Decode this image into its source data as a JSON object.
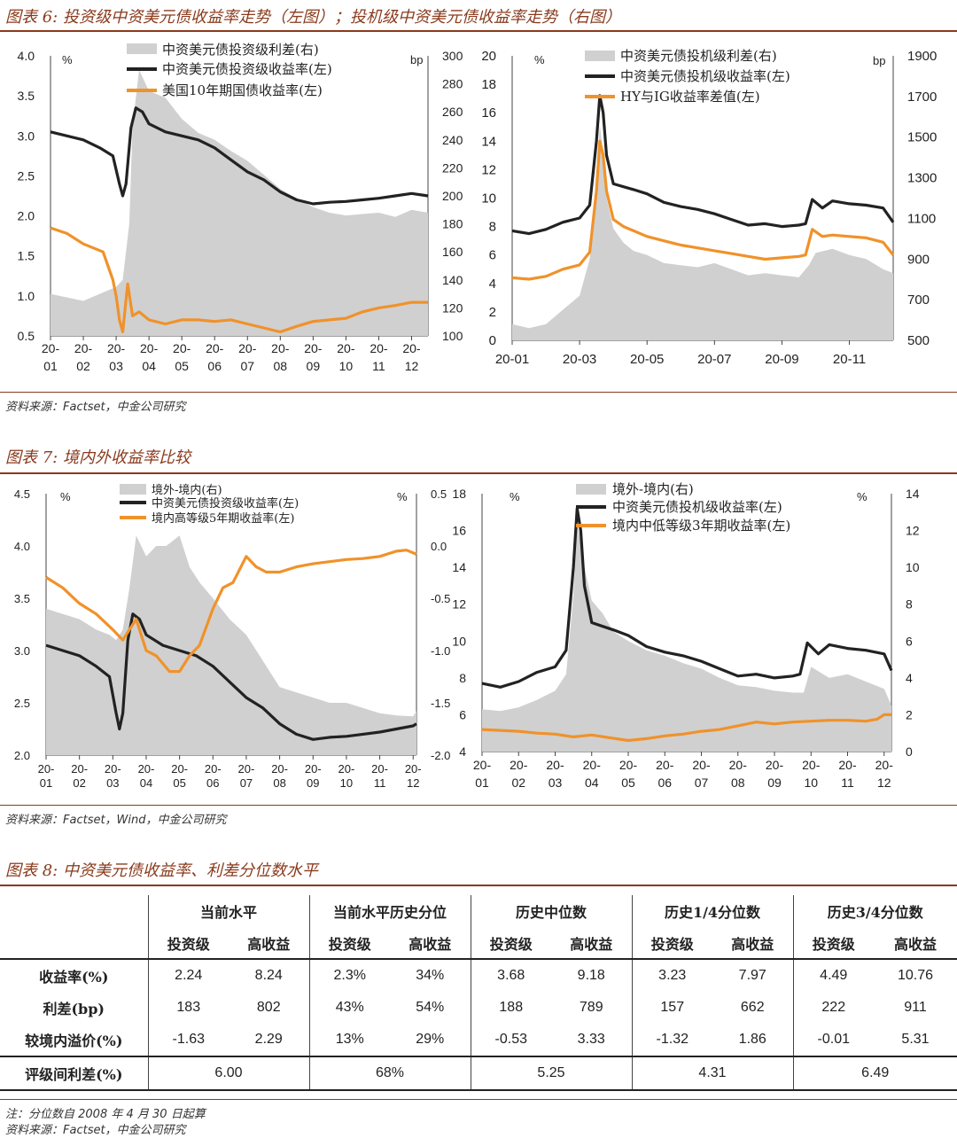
{
  "fig6": {
    "title": "图表 6: 投资级中资美元债收益率走势（左图）；投机级中资美元债收益率走势（右图）",
    "source": "资料来源：Factset，中金公司研究"
  },
  "fig7": {
    "title": "图表 7: 境内外收益率比较",
    "source": "资料来源：Factset，Wind，中金公司研究"
  },
  "fig8": {
    "title": "图表 8: 中资美元债收益率、利差分位数水平",
    "note": "注：分位数自 2008 年 4 月 30 日起算",
    "source": "资料来源：Factset，中金公司研究"
  },
  "chart_data": [
    {
      "id": "c6l",
      "type": "line",
      "left_unit": "%",
      "right_unit": "bp",
      "ylim_left": [
        0.5,
        4.0
      ],
      "ylim_right": [
        100,
        300
      ],
      "yticks_left": [
        "4.0",
        "3.5",
        "3.0",
        "2.5",
        "2.0",
        "1.5",
        "1.0",
        "0.5"
      ],
      "yticks_right": [
        "300",
        "280",
        "260",
        "240",
        "220",
        "200",
        "180",
        "160",
        "140",
        "120",
        "100"
      ],
      "xticks": [
        "20-01",
        "20-02",
        "20-03",
        "20-04",
        "20-05",
        "20-06",
        "20-07",
        "20-08",
        "20-09",
        "20-10",
        "20-11",
        "20-12"
      ],
      "x_months": [
        0,
        1,
        2,
        3,
        4,
        5,
        6,
        7,
        8,
        9,
        10,
        11
      ],
      "series": [
        {
          "name": "中资美元债投资级利差(右)",
          "kind": "area",
          "axis": "right",
          "color": "#d0d0d0",
          "x": [
            0,
            1,
            1.5,
            2,
            2.2,
            2.4,
            2.5,
            2.6,
            2.7,
            2.8,
            3,
            3.5,
            4,
            4.5,
            5,
            5.5,
            6,
            6.5,
            7,
            7.5,
            8,
            8.5,
            9,
            9.5,
            10,
            10.5,
            11,
            11.5
          ],
          "y": [
            130,
            125,
            130,
            135,
            140,
            180,
            250,
            270,
            290,
            285,
            275,
            270,
            255,
            245,
            240,
            232,
            225,
            215,
            205,
            198,
            192,
            188,
            186,
            187,
            188,
            185,
            190,
            188
          ]
        },
        {
          "name": "中资美元债投资级收益率(左)",
          "kind": "line",
          "axis": "left",
          "color": "#222222",
          "x": [
            0,
            0.5,
            1,
            1.5,
            1.9,
            2.1,
            2.2,
            2.3,
            2.45,
            2.6,
            2.8,
            3,
            3.5,
            4,
            4.5,
            5,
            5.5,
            6,
            6.5,
            7,
            7.5,
            8,
            8.5,
            9,
            9.5,
            10,
            10.5,
            11,
            11.5
          ],
          "y": [
            3.05,
            3.0,
            2.95,
            2.85,
            2.75,
            2.4,
            2.25,
            2.4,
            3.1,
            3.35,
            3.3,
            3.15,
            3.05,
            3.0,
            2.95,
            2.85,
            2.7,
            2.55,
            2.45,
            2.3,
            2.2,
            2.15,
            2.17,
            2.18,
            2.2,
            2.22,
            2.25,
            2.28,
            2.25
          ]
        },
        {
          "name": "美国10年期国债收益率(左)",
          "kind": "line",
          "axis": "left",
          "color": "#f0922a",
          "x": [
            0,
            0.5,
            1,
            1.3,
            1.6,
            1.9,
            2.0,
            2.1,
            2.2,
            2.35,
            2.5,
            2.7,
            3,
            3.5,
            4,
            4.5,
            5,
            5.5,
            6,
            6.5,
            7,
            7.5,
            8,
            8.5,
            9,
            9.5,
            10,
            10.5,
            11,
            11.5
          ],
          "y": [
            1.85,
            1.78,
            1.65,
            1.6,
            1.55,
            1.2,
            1.0,
            0.7,
            0.55,
            1.15,
            0.75,
            0.8,
            0.7,
            0.65,
            0.7,
            0.7,
            0.68,
            0.7,
            0.65,
            0.6,
            0.55,
            0.62,
            0.68,
            0.7,
            0.72,
            0.8,
            0.85,
            0.88,
            0.92,
            0.92
          ]
        }
      ]
    },
    {
      "id": "c6r",
      "type": "line",
      "left_unit": "%",
      "right_unit": "bp",
      "ylim_left": [
        0,
        20
      ],
      "ylim_right": [
        500,
        1900
      ],
      "yticks_left": [
        "20",
        "18",
        "16",
        "14",
        "12",
        "10",
        "8",
        "6",
        "4",
        "2",
        "0"
      ],
      "yticks_right": [
        "1900",
        "1700",
        "1500",
        "1300",
        "1100",
        "900",
        "700",
        "500"
      ],
      "xticks": [
        "20-01",
        "20-03",
        "20-05",
        "20-07",
        "20-09",
        "20-11"
      ],
      "x_months": [
        0,
        2,
        4,
        6,
        8,
        10
      ],
      "series": [
        {
          "name": "中资美元债投机级利差(右)",
          "kind": "area",
          "axis": "right",
          "color": "#d0d0d0",
          "x": [
            0,
            0.5,
            1,
            1.5,
            2,
            2.3,
            2.5,
            2.6,
            2.7,
            2.8,
            3,
            3.3,
            3.6,
            4,
            4.5,
            5,
            5.5,
            6,
            6.5,
            7,
            7.5,
            8,
            8.5,
            8.8,
            9,
            9.5,
            10,
            10.5,
            11,
            11.3
          ],
          "y": [
            580,
            560,
            580,
            650,
            720,
            900,
            1300,
            1560,
            1420,
            1200,
            1050,
            980,
            940,
            920,
            880,
            870,
            860,
            880,
            850,
            820,
            830,
            820,
            810,
            870,
            930,
            950,
            920,
            900,
            850,
            830
          ]
        },
        {
          "name": "中资美元债投机级收益率(左)",
          "kind": "line",
          "axis": "left",
          "color": "#222222",
          "x": [
            0,
            0.5,
            1,
            1.5,
            2,
            2.3,
            2.5,
            2.6,
            2.7,
            2.8,
            3,
            3.3,
            3.6,
            4,
            4.5,
            5,
            5.5,
            6,
            6.5,
            7,
            7.5,
            8,
            8.5,
            8.7,
            8.9,
            9.2,
            9.5,
            10,
            10.5,
            11,
            11.3
          ],
          "y": [
            7.7,
            7.5,
            7.8,
            8.3,
            8.6,
            9.5,
            14,
            17.2,
            16,
            13,
            11,
            10.8,
            10.6,
            10.3,
            9.7,
            9.4,
            9.2,
            8.9,
            8.5,
            8.1,
            8.2,
            8.0,
            8.1,
            8.2,
            9.9,
            9.3,
            9.8,
            9.6,
            9.5,
            9.3,
            8.3
          ]
        },
        {
          "name": "HY与IG收益率差值(左)",
          "kind": "line",
          "axis": "left",
          "color": "#f0922a",
          "x": [
            0,
            0.5,
            1,
            1.5,
            2,
            2.3,
            2.5,
            2.6,
            2.7,
            2.8,
            3,
            3.3,
            3.6,
            4,
            4.5,
            5,
            5.5,
            6,
            6.5,
            7,
            7.5,
            8,
            8.5,
            8.7,
            8.9,
            9.2,
            9.5,
            10,
            10.5,
            11,
            11.3
          ],
          "y": [
            4.4,
            4.3,
            4.5,
            5.0,
            5.3,
            6.2,
            10.5,
            14,
            13,
            10.5,
            8.5,
            8.0,
            7.7,
            7.3,
            7.0,
            6.7,
            6.5,
            6.3,
            6.1,
            5.9,
            5.7,
            5.8,
            5.9,
            6.0,
            7.8,
            7.3,
            7.4,
            7.3,
            7.2,
            6.9,
            6.0
          ]
        }
      ]
    },
    {
      "id": "c7l",
      "type": "line",
      "left_unit": "%",
      "right_unit": "%",
      "ylim_left": [
        2.0,
        4.5
      ],
      "ylim_right": [
        -2.0,
        0.5
      ],
      "yticks_left": [
        "4.5",
        "4.0",
        "3.5",
        "3.0",
        "2.5",
        "2.0"
      ],
      "yticks_right": [
        "0.5",
        "0.0",
        "-0.5",
        "-1.0",
        "-1.5",
        "-2.0"
      ],
      "xticks": [
        "20-01",
        "20-02",
        "20-03",
        "20-04",
        "20-05",
        "20-06",
        "20-07",
        "20-08",
        "20-09",
        "20-10",
        "20-11",
        "20-12"
      ],
      "x_months": [
        0,
        1,
        2,
        3,
        4,
        5,
        6,
        7,
        8,
        9,
        10,
        11
      ],
      "series": [
        {
          "name": "境外-境内(右)",
          "kind": "area",
          "axis": "right",
          "color": "#d0d0d0",
          "x": [
            0,
            0.5,
            1,
            1.5,
            1.9,
            2.1,
            2.3,
            2.5,
            2.7,
            3,
            3.3,
            3.6,
            4,
            4.3,
            4.6,
            5,
            5.5,
            6,
            6.5,
            7,
            7.5,
            8,
            8.5,
            9,
            9.5,
            10,
            10.5,
            11,
            11.1
          ],
          "y": [
            -0.6,
            -0.65,
            -0.7,
            -0.8,
            -0.85,
            -0.9,
            -0.8,
            -0.4,
            0.1,
            -0.1,
            0.0,
            0.0,
            0.1,
            -0.2,
            -0.35,
            -0.5,
            -0.7,
            -0.85,
            -1.1,
            -1.35,
            -1.4,
            -1.45,
            -1.5,
            -1.5,
            -1.55,
            -1.6,
            -1.62,
            -1.63,
            -1.58
          ]
        },
        {
          "name": "中资美元债投资级收益率(左)",
          "kind": "line",
          "axis": "left",
          "color": "#222222",
          "x": [
            0,
            0.5,
            1,
            1.5,
            1.9,
            2.1,
            2.2,
            2.3,
            2.45,
            2.6,
            2.8,
            3,
            3.5,
            4,
            4.5,
            5,
            5.5,
            6,
            6.5,
            7,
            7.5,
            8,
            8.5,
            9,
            9.5,
            10,
            10.5,
            11,
            11.1
          ],
          "y": [
            3.05,
            3.0,
            2.95,
            2.85,
            2.75,
            2.4,
            2.25,
            2.4,
            3.1,
            3.35,
            3.3,
            3.15,
            3.05,
            3.0,
            2.95,
            2.85,
            2.7,
            2.55,
            2.45,
            2.3,
            2.2,
            2.15,
            2.17,
            2.18,
            2.2,
            2.22,
            2.25,
            2.28,
            2.3
          ]
        },
        {
          "name": "境内高等级5年期收益率(左)",
          "kind": "line",
          "axis": "left",
          "color": "#f0922a",
          "x": [
            0,
            0.5,
            1,
            1.5,
            2,
            2.3,
            2.5,
            2.7,
            3,
            3.3,
            3.7,
            4,
            4.3,
            4.6,
            5,
            5.3,
            5.6,
            6,
            6.3,
            6.6,
            7,
            7.5,
            8,
            8.5,
            9,
            9.5,
            10,
            10.5,
            10.8,
            11.1
          ],
          "y": [
            3.7,
            3.6,
            3.45,
            3.35,
            3.2,
            3.1,
            3.2,
            3.3,
            3.0,
            2.95,
            2.8,
            2.8,
            2.95,
            3.05,
            3.4,
            3.6,
            3.65,
            3.9,
            3.8,
            3.75,
            3.75,
            3.8,
            3.83,
            3.85,
            3.87,
            3.88,
            3.9,
            3.95,
            3.96,
            3.92
          ]
        }
      ]
    },
    {
      "id": "c7r",
      "type": "line",
      "left_unit": "%",
      "right_unit": "%",
      "ylim_left": [
        4,
        18
      ],
      "ylim_right": [
        0,
        14
      ],
      "yticks_left": [
        "18",
        "16",
        "14",
        "12",
        "10",
        "8",
        "6",
        "4"
      ],
      "yticks_right": [
        "14",
        "12",
        "10",
        "8",
        "6",
        "4",
        "2",
        "0"
      ],
      "xticks": [
        "20-01",
        "20-02",
        "20-03",
        "20-04",
        "20-05",
        "20-06",
        "20-07",
        "20-08",
        "20-09",
        "20-10",
        "20-11",
        "20-12"
      ],
      "x_months": [
        0,
        1,
        2,
        3,
        4,
        5,
        6,
        7,
        8,
        9,
        10,
        11
      ],
      "series": [
        {
          "name": "境外-境内(右)",
          "kind": "area",
          "axis": "right",
          "color": "#d0d0d0",
          "x": [
            0,
            0.5,
            1,
            1.5,
            2,
            2.3,
            2.5,
            2.6,
            2.8,
            3,
            3.3,
            3.6,
            4,
            4.5,
            5,
            5.5,
            6,
            6.5,
            7,
            7.5,
            8,
            8.5,
            8.8,
            9,
            9.5,
            10,
            10.5,
            11,
            11.2
          ],
          "y": [
            2.3,
            2.2,
            2.4,
            2.8,
            3.3,
            4.2,
            8.5,
            12.5,
            10,
            8.2,
            7.5,
            6.5,
            6.0,
            5.5,
            5.2,
            4.8,
            4.5,
            4.0,
            3.6,
            3.5,
            3.3,
            3.2,
            3.2,
            4.6,
            4.0,
            4.2,
            3.8,
            3.4,
            2.5
          ]
        },
        {
          "name": "中资美元债投机级收益率(左)",
          "kind": "line",
          "axis": "left",
          "color": "#222222",
          "x": [
            0,
            0.5,
            1,
            1.5,
            2,
            2.3,
            2.5,
            2.6,
            2.7,
            2.8,
            3,
            3.3,
            3.6,
            4,
            4.5,
            5,
            5.5,
            6,
            6.5,
            7,
            7.5,
            8,
            8.5,
            8.7,
            8.9,
            9.2,
            9.5,
            10,
            10.5,
            11,
            11.2
          ],
          "y": [
            7.7,
            7.5,
            7.8,
            8.3,
            8.6,
            9.5,
            14,
            17.2,
            16,
            13,
            11,
            10.8,
            10.6,
            10.3,
            9.7,
            9.4,
            9.2,
            8.9,
            8.5,
            8.1,
            8.2,
            8.0,
            8.1,
            8.2,
            9.9,
            9.3,
            9.8,
            9.6,
            9.5,
            9.3,
            8.4
          ]
        },
        {
          "name": "境内中低等级3年期收益率(左)",
          "kind": "line",
          "axis": "left",
          "color": "#f0922a",
          "x": [
            0,
            0.5,
            1,
            1.5,
            2,
            2.5,
            3,
            3.5,
            4,
            4.5,
            5,
            5.5,
            6,
            6.5,
            7,
            7.5,
            8,
            8.5,
            9,
            9.5,
            10,
            10.5,
            10.8,
            11,
            11.2
          ],
          "y": [
            5.2,
            5.15,
            5.1,
            5.0,
            4.95,
            4.8,
            4.9,
            4.75,
            4.6,
            4.7,
            4.85,
            4.95,
            5.1,
            5.2,
            5.4,
            5.6,
            5.5,
            5.6,
            5.65,
            5.7,
            5.7,
            5.65,
            5.75,
            6.0,
            6.0
          ]
        }
      ]
    }
  ],
  "table": {
    "groups": [
      "当前水平",
      "当前水平历史分位",
      "历史中位数",
      "历史1/4分位数",
      "历史3/4分位数"
    ],
    "subheaders": [
      "投资级",
      "高收益"
    ],
    "rows": [
      {
        "label": "收益率(%)",
        "values": [
          "2.24",
          "8.24",
          "2.3%",
          "34%",
          "3.68",
          "9.18",
          "3.23",
          "7.97",
          "4.49",
          "10.76"
        ]
      },
      {
        "label": "利差(bp)",
        "values": [
          "183",
          "802",
          "43%",
          "54%",
          "188",
          "789",
          "157",
          "662",
          "222",
          "911"
        ]
      },
      {
        "label": "较境内溢价(%)",
        "values": [
          "-1.63",
          "2.29",
          "13%",
          "29%",
          "-0.53",
          "3.33",
          "-1.32",
          "1.86",
          "-0.01",
          "5.31"
        ]
      }
    ],
    "summary": {
      "label": "评级间利差(%)",
      "values": [
        "6.00",
        "68%",
        "5.25",
        "4.31",
        "6.49"
      ]
    }
  }
}
